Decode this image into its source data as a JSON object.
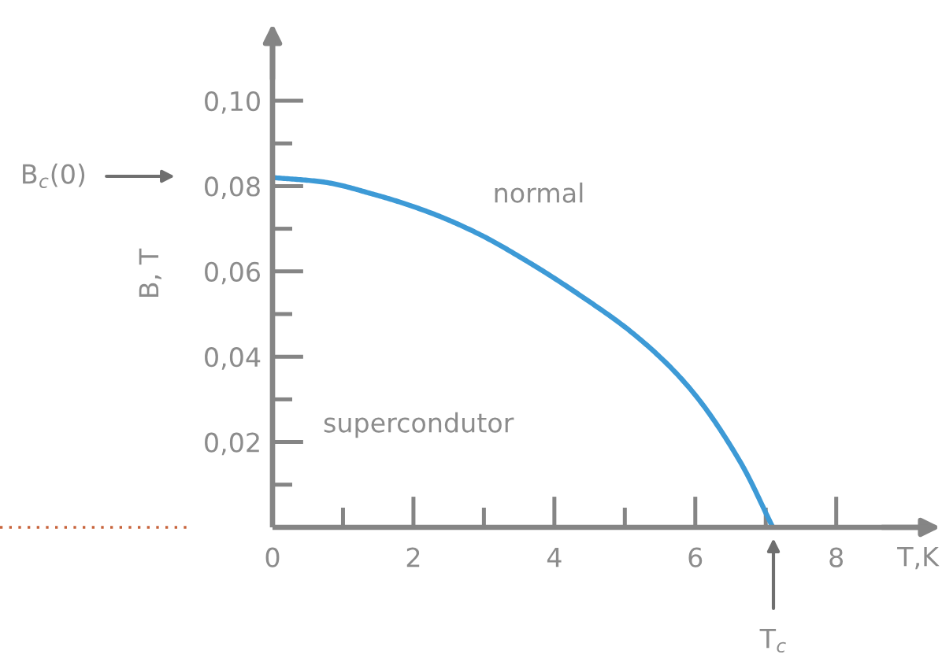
{
  "chart_data": {
    "type": "line",
    "xlabel": "T,K",
    "ylabel": "B, T",
    "line_style": "solid",
    "x": [
      0,
      0.7,
      1.45,
      2.2,
      2.9,
      3.65,
      4.4,
      5.15,
      5.9,
      6.65,
      7.1
    ],
    "series": [
      {
        "color": "#3d9ad6",
        "values": [
          0.082,
          0.081,
          0.078,
          0.074,
          0.069,
          0.062,
          0.054,
          0.045,
          0.033,
          0.015,
          0
        ]
      }
    ],
    "xlim": [
      0,
      9.3
    ],
    "ylim": [
      0,
      0.114
    ],
    "xticks": [
      0,
      {
        "value": 1,
        "label": null
      },
      2,
      {
        "value": 3,
        "label": null
      },
      4,
      {
        "value": 5,
        "label": null
      },
      6,
      {
        "value": 7,
        "label": null
      },
      8
    ],
    "yticks": [
      {
        "value": 0.01,
        "label": null
      },
      {
        "value": 0.02,
        "label": "0,02"
      },
      {
        "value": 0.03,
        "label": null
      },
      {
        "value": 0.04,
        "label": "0,04"
      },
      {
        "value": 0.05,
        "label": null
      },
      {
        "value": 0.06,
        "label": "0,06"
      },
      {
        "value": 0.07,
        "label": null
      },
      {
        "value": 0.08,
        "label": "0,08"
      },
      {
        "value": 0.09,
        "label": null
      },
      {
        "value": 0.1,
        "label": "0,10"
      }
    ],
    "annotations": [
      "normal",
      "supercondutor",
      "B$_{c}$(0)",
      "T$_{c}$"
    ]
  }
}
